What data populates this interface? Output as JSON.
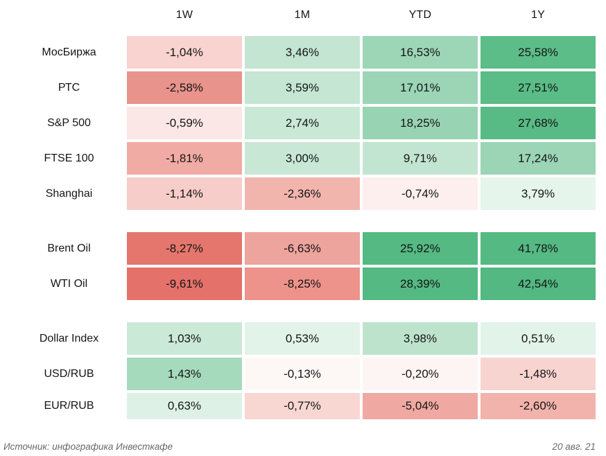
{
  "header": {
    "columns": [
      "1W",
      "1M",
      "YTD",
      "1Y"
    ]
  },
  "table": {
    "rows": [
      {
        "label": "МосБиржа",
        "cells": [
          {
            "value": "-1,04%",
            "color": "#f8d3cf"
          },
          {
            "value": "3,46%",
            "color": "#c3e5d1"
          },
          {
            "value": "16,53%",
            "color": "#9cd6b6"
          },
          {
            "value": "25,58%",
            "color": "#5cbd88"
          }
        ]
      },
      {
        "label": "РТС",
        "cells": [
          {
            "value": "-2,58%",
            "color": "#e8938b"
          },
          {
            "value": "3,59%",
            "color": "#c4e6d2"
          },
          {
            "value": "17,01%",
            "color": "#9bd5b5"
          },
          {
            "value": "27,51%",
            "color": "#5abc86"
          }
        ]
      },
      {
        "label": "S&P 500",
        "cells": [
          {
            "value": "-0,59%",
            "color": "#fbe7e5"
          },
          {
            "value": "2,74%",
            "color": "#c9e8d6"
          },
          {
            "value": "18,25%",
            "color": "#98d4b3"
          },
          {
            "value": "27,68%",
            "color": "#58bb85"
          }
        ]
      },
      {
        "label": "FTSE 100",
        "cells": [
          {
            "value": "-1,81%",
            "color": "#f0aba4"
          },
          {
            "value": "3,00%",
            "color": "#c8e8d5"
          },
          {
            "value": "9,71%",
            "color": "#c2e5d1"
          },
          {
            "value": "17,24%",
            "color": "#9bd5b6"
          }
        ]
      },
      {
        "label": "Shanghai",
        "cells": [
          {
            "value": "-1,14%",
            "color": "#f6cdc9"
          },
          {
            "value": "-2,36%",
            "color": "#f2b5ae"
          },
          {
            "value": "-0,74%",
            "color": "#fdefed"
          },
          {
            "value": "3,79%",
            "color": "#e5f5ec"
          }
        ]
      },
      {
        "label": "Brent Oil",
        "cells": [
          {
            "value": "-8,27%",
            "color": "#e5766d"
          },
          {
            "value": "-6,63%",
            "color": "#eda49c"
          },
          {
            "value": "25,92%",
            "color": "#55b983"
          },
          {
            "value": "41,78%",
            "color": "#55b983"
          }
        ]
      },
      {
        "label": "WTI Oil",
        "cells": [
          {
            "value": "-9,61%",
            "color": "#e4716a"
          },
          {
            "value": "-8,25%",
            "color": "#ed938b"
          },
          {
            "value": "28,39%",
            "color": "#55b983"
          },
          {
            "value": "42,54%",
            "color": "#53b881"
          }
        ]
      },
      {
        "label": "Dollar Index",
        "cells": [
          {
            "value": "1,03%",
            "color": "#cbe9d7"
          },
          {
            "value": "0,53%",
            "color": "#e2f3ea"
          },
          {
            "value": "3,98%",
            "color": "#bee3cd"
          },
          {
            "value": "0,51%",
            "color": "#e2f3e9"
          }
        ]
      },
      {
        "label": "USD/RUB",
        "cells": [
          {
            "value": "1,43%",
            "color": "#a6dabd"
          },
          {
            "value": "-0,13%",
            "color": "#fdf7f6"
          },
          {
            "value": "-0,20%",
            "color": "#fdf5f4"
          },
          {
            "value": "-1,48%",
            "color": "#f7d4d0"
          }
        ]
      },
      {
        "label": "EUR/RUB",
        "cells": [
          {
            "value": "0,63%",
            "color": "#def1e7"
          },
          {
            "value": "-0,77%",
            "color": "#f8d7d3"
          },
          {
            "value": "-5,04%",
            "color": "#f0a9a2"
          },
          {
            "value": "-2,60%",
            "color": "#f2b3ac"
          }
        ]
      }
    ]
  },
  "footer": {
    "source": "Источник: инфографика Инвесткафе",
    "date": "20 авг. 21"
  },
  "colors": {
    "max_green": "#55b983",
    "max_red": "#e4716a",
    "neutral": "#ffffff",
    "text": "#141414",
    "footer_text": "#696969"
  },
  "chart_data": {
    "type": "heatmap",
    "title": "",
    "columns": [
      "1W",
      "1M",
      "YTD",
      "1Y"
    ],
    "rows": [
      "МосБиржа",
      "РТС",
      "S&P 500",
      "FTSE 100",
      "Shanghai",
      "Brent Oil",
      "WTI Oil",
      "Dollar Index",
      "USD/RUB",
      "EUR/RUB"
    ],
    "values": [
      [
        -1.04,
        3.46,
        16.53,
        25.58
      ],
      [
        -2.58,
        3.59,
        17.01,
        27.51
      ],
      [
        -0.59,
        2.74,
        18.25,
        27.68
      ],
      [
        -1.81,
        3.0,
        9.71,
        17.24
      ],
      [
        -1.14,
        -2.36,
        -0.74,
        3.79
      ],
      [
        -8.27,
        -6.63,
        25.92,
        41.78
      ],
      [
        -9.61,
        -8.25,
        28.39,
        42.54
      ],
      [
        1.03,
        0.53,
        3.98,
        0.51
      ],
      [
        1.43,
        -0.13,
        -0.2,
        -1.48
      ],
      [
        0.63,
        -0.77,
        -5.04,
        -2.6
      ]
    ],
    "value_unit": "percent",
    "value_format": "comma decimal separator",
    "row_groups": [
      {
        "name": "equity-indices",
        "rows": [
          "МосБиржа",
          "РТС",
          "S&P 500",
          "FTSE 100",
          "Shanghai"
        ]
      },
      {
        "name": "oil",
        "rows": [
          "Brent Oil",
          "WTI Oil"
        ]
      },
      {
        "name": "currencies",
        "rows": [
          "Dollar Index",
          "USD/RUB",
          "EUR/RUB"
        ]
      }
    ],
    "colormap": "diverging red-white-green (negative red, positive green)",
    "legend": "none",
    "grid": "off",
    "source": "Источник: инфографика Инвесткафе",
    "date_label": "20 авг. 21"
  }
}
